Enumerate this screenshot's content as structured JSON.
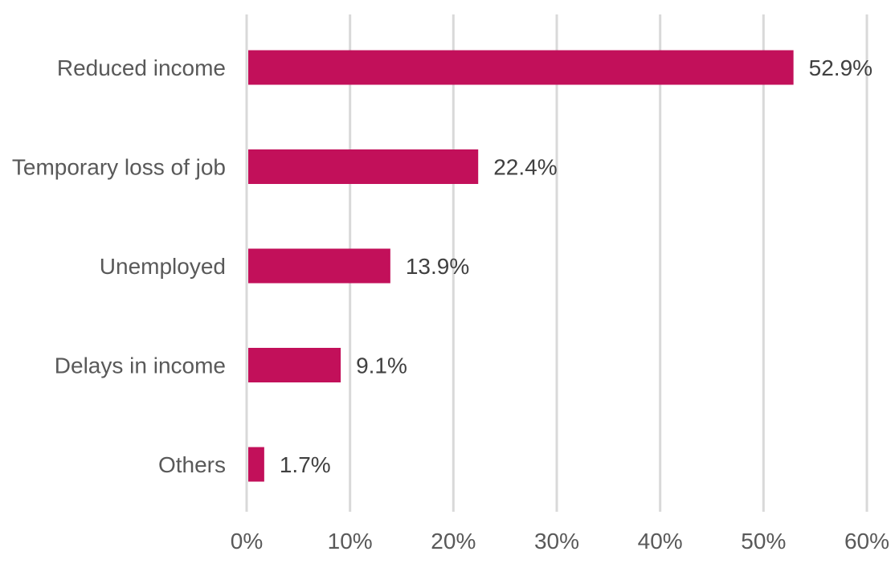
{
  "chart_data": {
    "type": "bar",
    "orientation": "horizontal",
    "categories": [
      "Reduced income",
      "Temporary loss of job",
      "Unemployed",
      "Delays in income",
      "Others"
    ],
    "values": [
      52.9,
      22.4,
      13.9,
      9.1,
      1.7
    ],
    "data_labels": [
      "52.9%",
      "22.4%",
      "13.9%",
      "9.1%",
      "1.7%"
    ],
    "x_ticks": [
      "0%",
      "10%",
      "20%",
      "30%",
      "40%",
      "50%",
      "60%"
    ],
    "xlim": [
      0,
      60
    ],
    "grid": "vertical",
    "legend": "none",
    "bar_color": "#C2105A",
    "grid_color": "#D9D9D9",
    "title": "",
    "xlabel": "",
    "ylabel": ""
  }
}
